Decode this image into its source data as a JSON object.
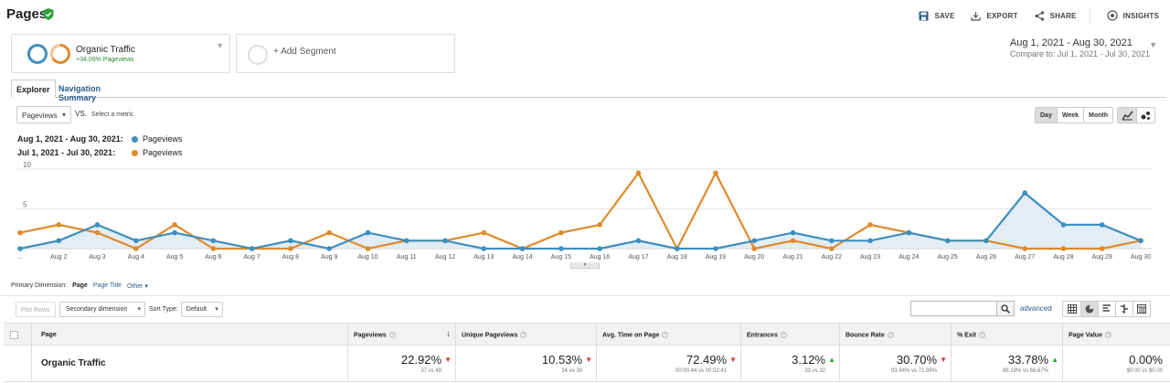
{
  "header": {
    "title": "Pages",
    "actions": [
      {
        "label": "SAVE",
        "icon": "save-icon"
      },
      {
        "label": "EXPORT",
        "icon": "export-icon"
      },
      {
        "label": "SHARE",
        "icon": "share-icon"
      },
      {
        "label": "INSIGHTS",
        "icon": "insights-icon"
      }
    ]
  },
  "segments": {
    "primary": {
      "name": "Organic Traffic",
      "subtitle": "+34.09% Pageviews"
    },
    "add_label": "+ Add Segment"
  },
  "date_range": {
    "current": "Aug 1, 2021 - Aug 30, 2021",
    "compare": "Compare to: Jul 1, 2021 - Jul 30, 2021"
  },
  "tabs": [
    "Explorer",
    "Navigation Summary"
  ],
  "chart_controls": {
    "metric": "Pageviews",
    "vs": "VS.",
    "select_metric": "Select a metric",
    "granularity": [
      "Day",
      "Week",
      "Month"
    ],
    "active_granularity": "Day"
  },
  "legend": [
    {
      "range": "Aug 1, 2021 - Aug 30, 2021:",
      "series": "Pageviews",
      "color": "#3d8fbe"
    },
    {
      "range": "Jul 1, 2021 - Jul 30, 2021:",
      "series": "Pageviews",
      "color": "#e08a2b"
    }
  ],
  "chart_data": {
    "type": "line",
    "x": [
      "...",
      "Aug 2",
      "Aug 3",
      "Aug 4",
      "Aug 5",
      "Aug 6",
      "Aug 7",
      "Aug 8",
      "Aug 9",
      "Aug 10",
      "Aug 11",
      "Aug 12",
      "Aug 13",
      "Aug 14",
      "Aug 15",
      "Aug 16",
      "Aug 17",
      "Aug 18",
      "Aug 19",
      "Aug 20",
      "Aug 21",
      "Aug 22",
      "Aug 23",
      "Aug 24",
      "Aug 25",
      "Aug 26",
      "Aug 27",
      "Aug 28",
      "Aug 29",
      "Aug 30"
    ],
    "yticks": [
      "10",
      "5"
    ],
    "ylim": [
      0,
      10
    ],
    "series": [
      {
        "name": "Pageviews",
        "color": "#3d8fbe",
        "values": [
          0,
          1,
          3,
          1,
          2,
          1,
          0,
          1,
          0,
          2,
          1,
          1,
          0,
          0,
          0,
          0,
          1,
          0,
          0,
          1,
          2,
          1,
          1,
          2,
          1,
          1,
          7,
          3,
          3,
          1
        ]
      },
      {
        "name": "Pageviews",
        "color": "#e08a2b",
        "values": [
          2,
          3,
          2,
          0,
          3,
          0,
          0,
          0,
          2,
          0,
          1,
          1,
          2,
          0,
          2,
          3,
          9.5,
          0,
          9.5,
          0,
          1,
          0,
          3,
          2,
          1,
          1,
          0,
          0,
          0,
          1
        ]
      }
    ]
  },
  "primary_dimension": {
    "label": "Primary Dimension:",
    "current": "Page",
    "options": [
      "Page Title",
      "Other ▾"
    ]
  },
  "table_toolbar": {
    "plot_rows": "Plot Rows",
    "secondary_dimension": "Secondary dimension",
    "sort_type_label": "Sort Type:",
    "sort_type": "Default",
    "advanced": "advanced"
  },
  "table": {
    "headers": [
      "Page",
      "Pageviews",
      "Unique Pageviews",
      "Avg. Time on Page",
      "Entrances",
      "Bounce Rate",
      "% Exit",
      "Page Value"
    ],
    "row": {
      "label": "Organic Traffic",
      "cells": [
        {
          "value": "22.92%",
          "sub": "37 vs 48",
          "trend": "down"
        },
        {
          "value": "10.53%",
          "sub": "34 vs 38",
          "trend": "down"
        },
        {
          "value": "72.49%",
          "sub": "00:00:44 vs 00:02:41",
          "trend": "down"
        },
        {
          "value": "3.12%",
          "sub": "33 vs 32",
          "trend": "up"
        },
        {
          "value": "30.70%",
          "sub": "93.94% vs 71.88%",
          "trend": "down"
        },
        {
          "value": "33.78%",
          "sub": "89.19% vs 66.67%",
          "trend": "up"
        },
        {
          "value": "0.00%",
          "sub": "$0.00 vs $0.00",
          "trend": "none"
        }
      ]
    }
  }
}
